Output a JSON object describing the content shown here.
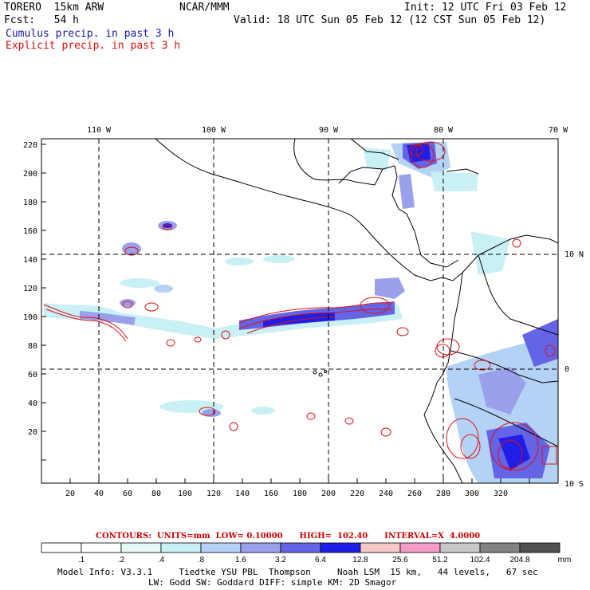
{
  "header": {
    "model": "TORERO  15km ARW",
    "org": "NCAR/MMM",
    "init": "Init: 12 UTC Fri 03 Feb 12",
    "fcst": "Fcst:   54 h",
    "valid": "Valid: 18 UTC Sun 05 Feb 12 (12 CST Sun 05 Feb 12)",
    "field1": "Cumulus precip. in past 3 h",
    "field2": "Explicit precip. in past 3 h",
    "color_field1": "#1a1aa6",
    "color_field2": "#e01010"
  },
  "map": {
    "lon_labels": [
      "110 W",
      "100 W",
      "90 W",
      "80 W",
      "70 W"
    ],
    "lat_labels": [
      "10 N",
      "0",
      "10 S"
    ],
    "y_ticks": [
      "220",
      "200",
      "180",
      "160",
      "140",
      "120",
      "100",
      "80",
      "60",
      "40",
      "20"
    ],
    "x_ticks": [
      "20",
      "40",
      "60",
      "80",
      "100",
      "120",
      "140",
      "160",
      "180",
      "200",
      "220",
      "240",
      "260",
      "280",
      "300",
      "320"
    ]
  },
  "contours": {
    "label": "CONTOURS:  UNITS=mm  LOW= 0.10000      HIGH=  102.40      INTERVAL=X  4.0000"
  },
  "colorbar": {
    "colors": [
      "#ffffff",
      "#ffffff",
      "#e6f9f9",
      "#c8f0f5",
      "#b4d2f5",
      "#9ba0eb",
      "#6464e6",
      "#1e1ee6",
      "#f5c8c8",
      "#f59bc8",
      "#c8c8c8",
      "#828282",
      "#505050",
      "#c8a0f5"
    ],
    "labels": [
      ".1",
      ".2",
      ".4",
      ".8",
      "1.6",
      "3.2",
      "6.4",
      "12.8",
      "25.6",
      "51.2",
      "102.4",
      "204.8"
    ],
    "unit": "mm"
  },
  "footer": {
    "line1": "Model Info: V3.3.1     Tiedtke YSU PBL  Thompson     Noah LSM  15 km,   44 levels,   67 sec",
    "line2": "LW: Godd SW: Goddard DIFF: simple KM: 2D Smagor"
  }
}
